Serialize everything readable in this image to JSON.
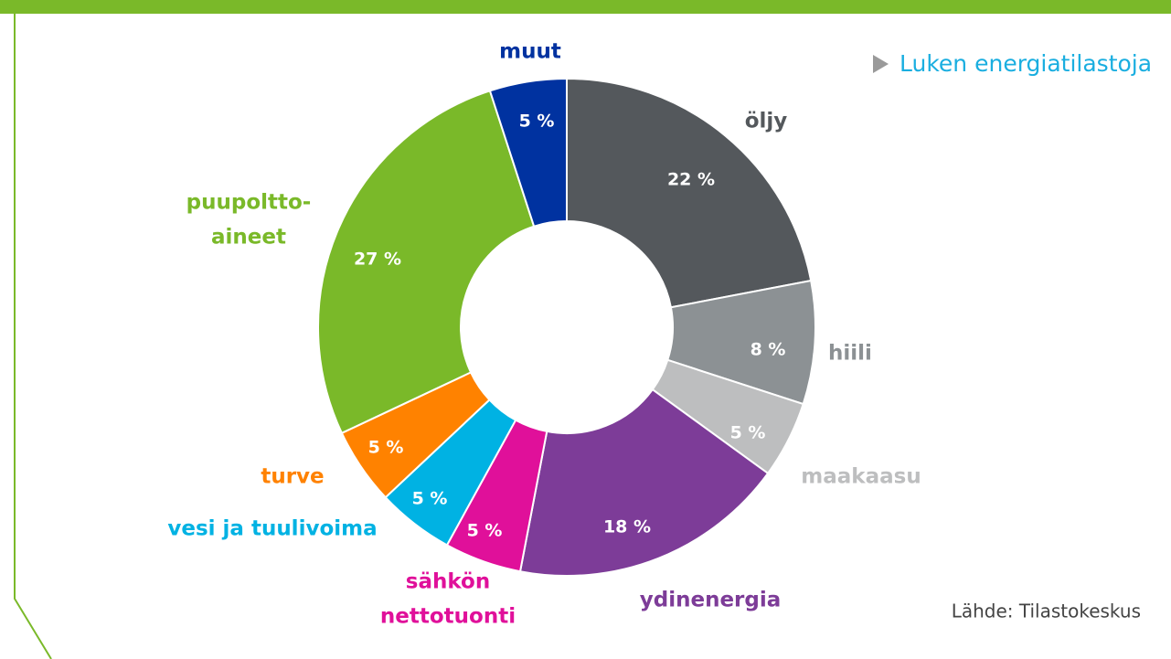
{
  "link": "Luken energiatilastoja",
  "source": "Lähde: Tilastokeskus",
  "chart_data": {
    "type": "donut",
    "categories": [
      "öljy",
      "hiili",
      "maakaasu",
      "ydinenergia",
      [
        "sähkön",
        "nettotuonti"
      ],
      "vesi ja tuulivoima",
      "turve",
      [
        "puupoltto-",
        "aineet"
      ],
      "muut"
    ],
    "values": [
      22,
      8,
      5,
      18,
      5,
      5,
      5,
      27,
      5
    ],
    "value_labels": [
      "22 %",
      "8 %",
      "5 %",
      "18 %",
      "5 %",
      "5 %",
      "5 %",
      "27 %",
      "5 %"
    ],
    "colors": [
      "#54585c",
      "#8c9194",
      "#bdbebf",
      "#7d3c98",
      "#e0109a",
      "#00b2e3",
      "#ff8200",
      "#7ab929",
      "#0032a0"
    ]
  }
}
